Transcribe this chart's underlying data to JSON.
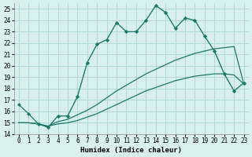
{
  "xlabel": "Humidex (Indice chaleur)",
  "ylabel": "",
  "bg_color": "#d8f0f0",
  "line_color": "#1a7a6a",
  "grid_color": "#b0d8d8",
  "ylim": [
    14,
    25.5
  ],
  "xlim": [
    -0.5,
    23.5
  ],
  "yticks": [
    14,
    15,
    16,
    17,
    18,
    19,
    20,
    21,
    22,
    23,
    24,
    25
  ],
  "xticks": [
    0,
    1,
    2,
    3,
    4,
    5,
    6,
    7,
    8,
    9,
    10,
    11,
    12,
    13,
    14,
    15,
    16,
    17,
    18,
    19,
    20,
    21,
    22,
    23
  ],
  "series": [
    {
      "x": [
        0,
        1,
        2,
        3,
        4,
        5,
        6,
        7,
        8,
        9,
        10,
        11,
        12,
        13,
        14,
        15,
        16,
        17,
        18,
        19,
        20,
        21,
        22,
        23
      ],
      "y": [
        16.6,
        15.8,
        14.9,
        14.6,
        15.6,
        15.6,
        17.3,
        20.3,
        21.9,
        22.3,
        23.8,
        23.0,
        23.0,
        24.0,
        25.3,
        24.7,
        23.3,
        24.2,
        24.0,
        22.6,
        21.3,
        19.3,
        17.8,
        18.5
      ],
      "marker": "D",
      "linestyle": "-"
    },
    {
      "x": [
        0,
        1,
        2,
        3,
        4,
        5,
        6,
        7,
        8,
        9,
        10,
        11,
        12,
        13,
        14,
        15,
        16,
        17,
        18,
        19,
        20,
        21,
        22,
        23
      ],
      "y": [
        15.0,
        15.0,
        14.9,
        14.7,
        15.1,
        15.3,
        15.7,
        16.1,
        16.6,
        17.2,
        17.8,
        18.3,
        18.8,
        19.3,
        19.7,
        20.1,
        20.5,
        20.8,
        21.1,
        21.3,
        21.5,
        21.6,
        21.7,
        18.4
      ],
      "marker": null,
      "linestyle": "-"
    },
    {
      "x": [
        0,
        1,
        2,
        3,
        4,
        5,
        6,
        7,
        8,
        9,
        10,
        11,
        12,
        13,
        14,
        15,
        16,
        17,
        18,
        19,
        20,
        21,
        22,
        23
      ],
      "y": [
        15.0,
        15.0,
        14.9,
        14.7,
        14.9,
        15.0,
        15.2,
        15.5,
        15.8,
        16.2,
        16.6,
        17.0,
        17.4,
        17.8,
        18.1,
        18.4,
        18.7,
        18.9,
        19.1,
        19.2,
        19.3,
        19.3,
        19.2,
        18.4
      ],
      "marker": null,
      "linestyle": "-"
    },
    {
      "x": [
        2,
        3,
        4,
        5,
        6,
        7,
        8,
        9,
        10,
        11,
        12,
        13,
        14,
        15,
        16,
        17,
        18,
        19,
        20,
        21,
        22,
        23
      ],
      "y": [
        14.9,
        14.6,
        15.6,
        15.6,
        17.3,
        20.3,
        21.9,
        22.3,
        23.8,
        23.0,
        23.0,
        24.0,
        25.3,
        24.7,
        23.3,
        24.2,
        24.0,
        22.6,
        21.3,
        19.3,
        17.8,
        18.5
      ],
      "marker": "D",
      "linestyle": ":"
    }
  ]
}
